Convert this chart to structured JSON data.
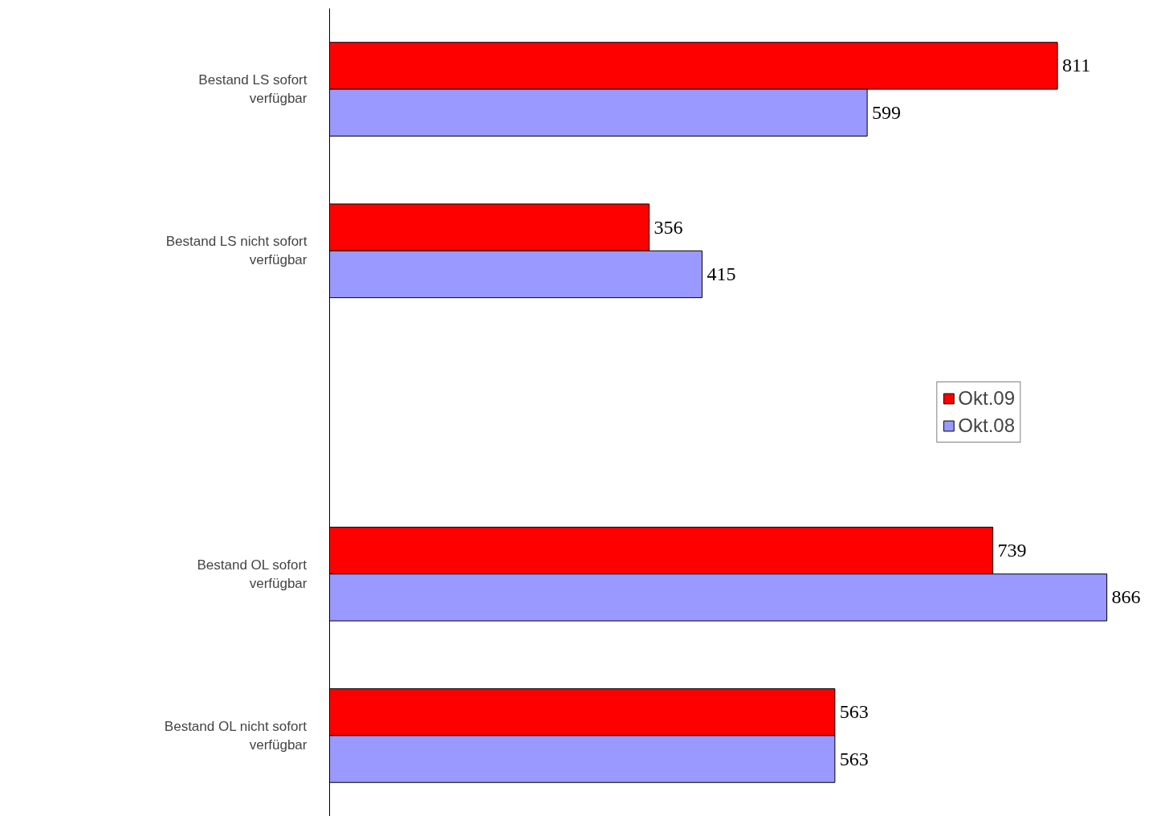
{
  "chart_data": {
    "type": "bar",
    "orientation": "horizontal",
    "categories": [
      "Bestand LS sofort verfügbar",
      "Bestand LS nicht sofort verfügbar",
      null,
      "Bestand OL sofort verfügbar",
      "Bestand OL nicht sofort verfügbar"
    ],
    "series": [
      {
        "name": "Okt.09",
        "color": "#ff0000",
        "values": [
          811,
          356,
          null,
          739,
          563
        ]
      },
      {
        "name": "Okt.08",
        "color": "#9999ff",
        "values": [
          599,
          415,
          null,
          866,
          563
        ]
      }
    ],
    "data_labels": true,
    "legend": "right",
    "grid": false
  }
}
